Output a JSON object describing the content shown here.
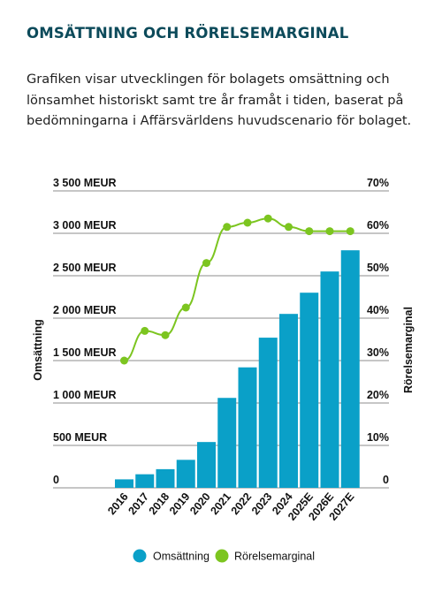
{
  "header": {
    "title": "OMSÄTTNING OCH RÖRELSEMARGINAL",
    "description": "Grafiken visar utvecklingen för bolagets omsättning och lönsamhet historiskt samt tre år framåt i tiden, baserat på bedömningarna i Affärsvärldens huvudscenario för bolaget."
  },
  "colors": {
    "bar": "#0aa0c8",
    "line": "#7cc520",
    "grid": "#8c8c8c",
    "title": "#0c4a5a"
  },
  "chart_data": {
    "type": "bar",
    "categories": [
      "2016",
      "2017",
      "2018",
      "2019",
      "2020",
      "2021",
      "2022",
      "2023",
      "2024",
      "2025E",
      "2026E",
      "2027E"
    ],
    "series": [
      {
        "name": "Omsättning",
        "type": "bar",
        "axis": "left",
        "values": [
          100,
          160,
          220,
          330,
          540,
          1060,
          1420,
          1770,
          2050,
          2300,
          2550,
          2800
        ]
      },
      {
        "name": "Rörelsemarginal",
        "type": "line",
        "axis": "right",
        "values": [
          30,
          37,
          36,
          42.5,
          53,
          61.5,
          62.5,
          63.5,
          61.5,
          60.5,
          60.5,
          60.5
        ]
      }
    ],
    "ylabel": "Omsättning",
    "y2label": "Rörelsemarginal",
    "ylim": [
      0,
      3500
    ],
    "y2lim": [
      0,
      70
    ],
    "yticks": [
      "0",
      "500 MEUR",
      "1 000 MEUR",
      "1 500 MEUR",
      "2 000 MEUR",
      "2 500 MEUR",
      "3 000 MEUR",
      "3 500 MEUR"
    ],
    "y2ticks": [
      "0",
      "10%",
      "20%",
      "30%",
      "40%",
      "50%",
      "60%",
      "70%"
    ],
    "grid": true,
    "legend": "bottom"
  }
}
